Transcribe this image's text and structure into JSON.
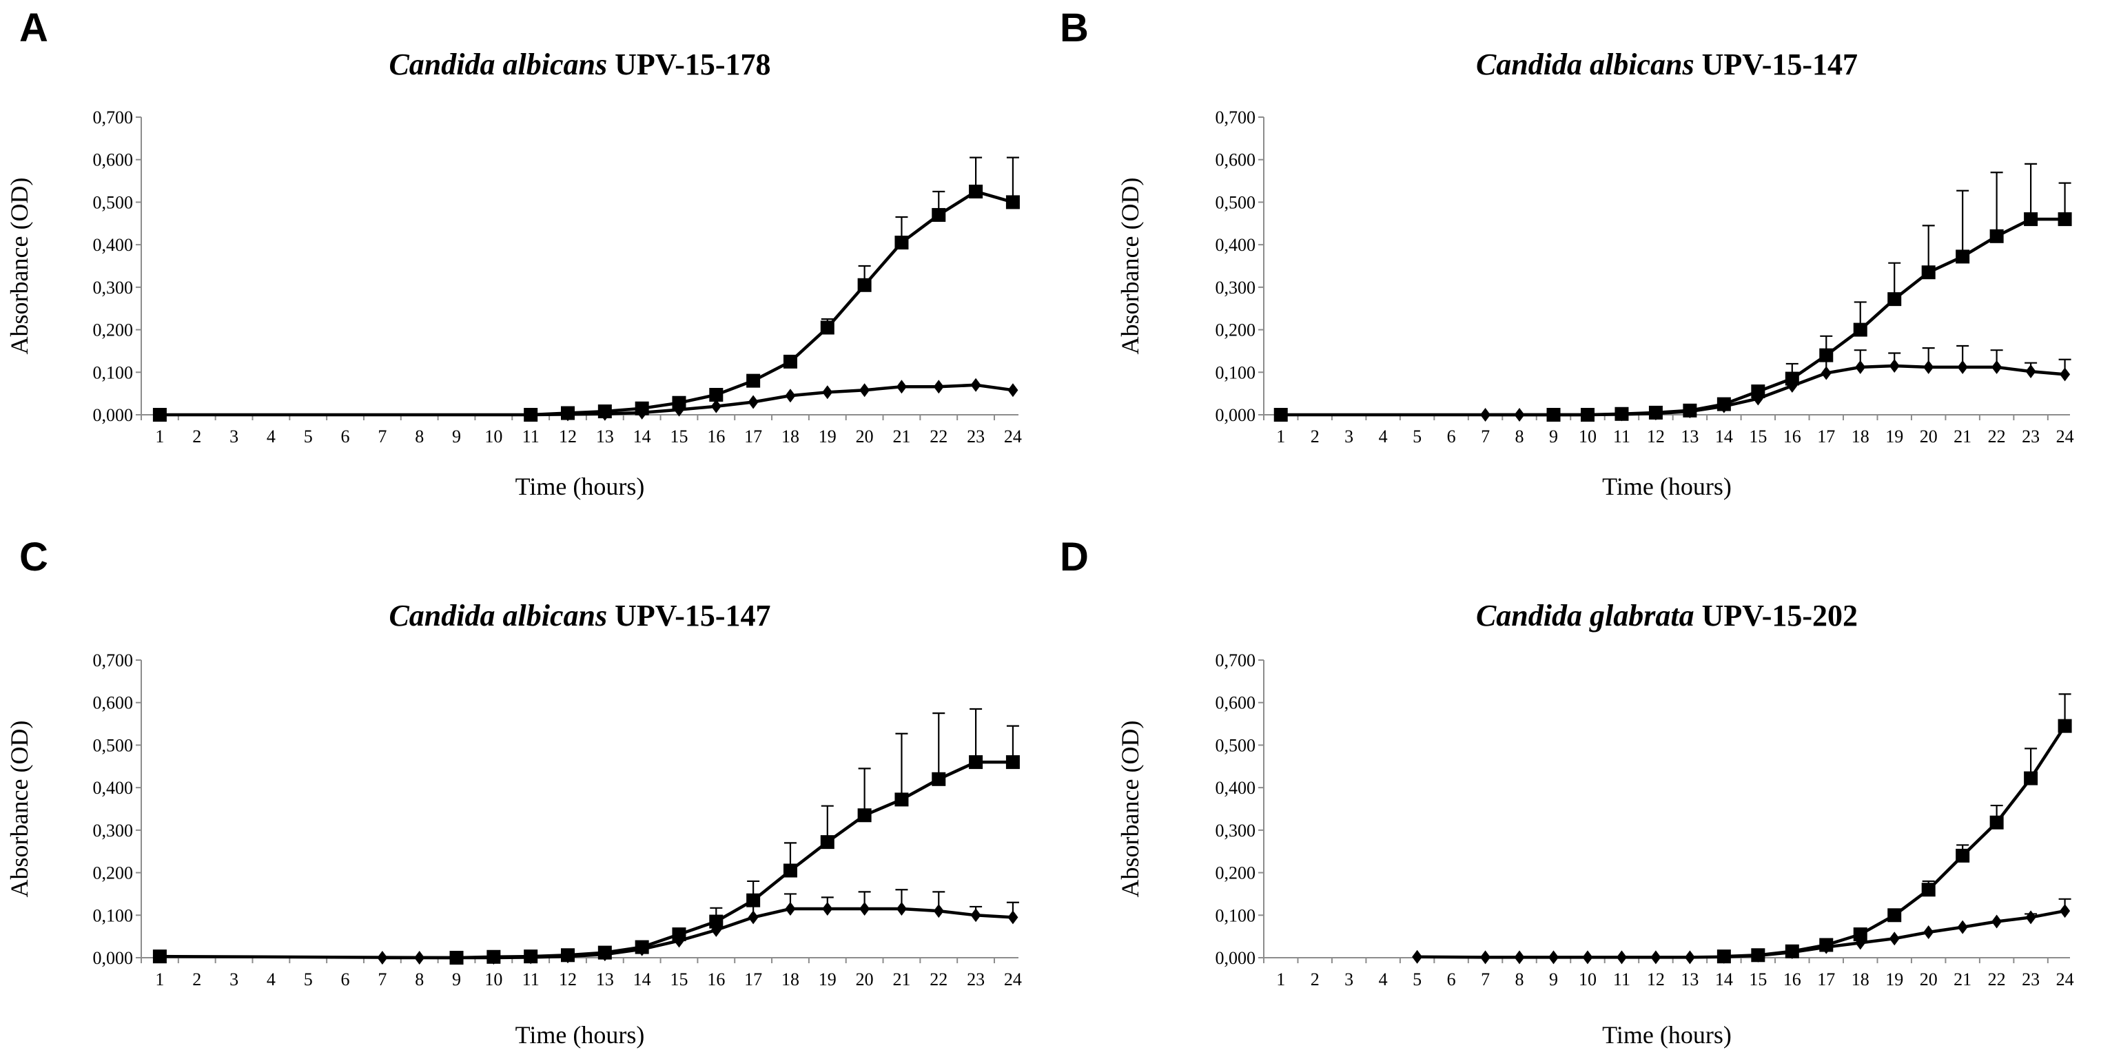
{
  "chart_data": [
    {
      "panel": "A",
      "type": "line",
      "title_species": "Candida albicans",
      "title_strain": "UPV-15-178",
      "xlabel": "Time (hours)",
      "ylabel": "Absorbance (OD)",
      "ylim": [
        0,
        0.7
      ],
      "yticks": [
        "0,000",
        "0,100",
        "0,200",
        "0,300",
        "0,400",
        "0,500",
        "0,600",
        "0,700"
      ],
      "categories": [
        "1",
        "2",
        "3",
        "4",
        "5",
        "6",
        "7",
        "8",
        "9",
        "10",
        "11",
        "12",
        "13",
        "14",
        "15",
        "16",
        "17",
        "18",
        "19",
        "20",
        "21",
        "22",
        "23",
        "24"
      ],
      "series": [
        {
          "name": "square",
          "marker": "square",
          "x": [
            1,
            11,
            12,
            13,
            14,
            15,
            16,
            17,
            18,
            19,
            20,
            21,
            22,
            23,
            24
          ],
          "values": [
            0.0,
            0.0,
            0.004,
            0.008,
            0.015,
            0.028,
            0.047,
            0.08,
            0.125,
            0.205,
            0.305,
            0.405,
            0.47,
            0.525,
            0.5
          ],
          "errors": [
            0,
            0,
            0,
            0,
            0,
            0,
            0,
            0,
            0,
            0.02,
            0.045,
            0.06,
            0.055,
            0.08,
            0.105
          ]
        },
        {
          "name": "diamond",
          "marker": "diamond",
          "x": [
            11,
            12,
            13,
            14,
            15,
            16,
            17,
            18,
            19,
            20,
            21,
            22,
            23,
            24
          ],
          "values": [
            0.0,
            0.001,
            0.002,
            0.005,
            0.012,
            0.02,
            0.03,
            0.045,
            0.053,
            0.058,
            0.066,
            0.066,
            0.07,
            0.058
          ],
          "errors": [
            0,
            0,
            0,
            0,
            0,
            0,
            0,
            0,
            0,
            0,
            0,
            0,
            0,
            0
          ]
        }
      ]
    },
    {
      "panel": "B",
      "type": "line",
      "title_species": "Candida albicans",
      "title_strain": "UPV-15-147",
      "xlabel": "Time (hours)",
      "ylabel": "Absorbance (OD)",
      "ylim": [
        0,
        0.7
      ],
      "yticks": [
        "0,000",
        "0,100",
        "0,200",
        "0,300",
        "0,400",
        "0,500",
        "0,600",
        "0,700"
      ],
      "categories": [
        "1",
        "2",
        "3",
        "4",
        "5",
        "6",
        "7",
        "8",
        "9",
        "10",
        "11",
        "12",
        "13",
        "14",
        "15",
        "16",
        "17",
        "18",
        "19",
        "20",
        "21",
        "22",
        "23",
        "24"
      ],
      "series": [
        {
          "name": "square",
          "marker": "square",
          "x": [
            1,
            9,
            10,
            11,
            12,
            13,
            14,
            15,
            16,
            17,
            18,
            19,
            20,
            21,
            22,
            23,
            24
          ],
          "values": [
            0.0,
            0.0,
            0.0,
            0.002,
            0.005,
            0.01,
            0.025,
            0.055,
            0.085,
            0.14,
            0.2,
            0.272,
            0.335,
            0.372,
            0.42,
            0.46,
            0.46
          ],
          "errors": [
            0,
            0,
            0,
            0,
            0,
            0,
            0,
            0.01,
            0.035,
            0.045,
            0.065,
            0.085,
            0.11,
            0.155,
            0.15,
            0.13,
            0.085
          ]
        },
        {
          "name": "diamond",
          "marker": "diamond",
          "x": [
            7,
            8,
            9,
            10,
            11,
            12,
            13,
            14,
            15,
            16,
            17,
            18,
            19,
            20,
            21,
            22,
            23,
            24
          ],
          "values": [
            0.0,
            0.0,
            0.0,
            0.0,
            0.001,
            0.003,
            0.008,
            0.02,
            0.038,
            0.068,
            0.098,
            0.112,
            0.115,
            0.112,
            0.112,
            0.112,
            0.102,
            0.095
          ],
          "errors": [
            0,
            0,
            0,
            0,
            0,
            0,
            0,
            0,
            0.01,
            0.025,
            0.035,
            0.04,
            0.03,
            0.045,
            0.05,
            0.04,
            0.02,
            0.035
          ]
        }
      ]
    },
    {
      "panel": "C",
      "type": "line",
      "title_species": "Candida albicans",
      "title_strain": "UPV-15-147",
      "xlabel": "Time (hours)",
      "ylabel": "Absorbance (OD)",
      "ylim": [
        0,
        0.7
      ],
      "yticks": [
        "0,000",
        "0,100",
        "0,200",
        "0,300",
        "0,400",
        "0,500",
        "0,600",
        "0,700"
      ],
      "categories": [
        "1",
        "2",
        "3",
        "4",
        "5",
        "6",
        "7",
        "8",
        "9",
        "10",
        "11",
        "12",
        "13",
        "14",
        "15",
        "16",
        "17",
        "18",
        "19",
        "20",
        "21",
        "22",
        "23",
        "24"
      ],
      "series": [
        {
          "name": "square",
          "marker": "square",
          "x": [
            1,
            9,
            10,
            11,
            12,
            13,
            14,
            15,
            16,
            17,
            18,
            19,
            20,
            21,
            22,
            23,
            24
          ],
          "values": [
            0.003,
            0.0,
            0.002,
            0.003,
            0.006,
            0.012,
            0.025,
            0.055,
            0.085,
            0.135,
            0.205,
            0.272,
            0.335,
            0.372,
            0.42,
            0.46,
            0.46
          ],
          "errors": [
            0,
            0,
            0,
            0,
            0,
            0,
            0,
            0.012,
            0.032,
            0.045,
            0.065,
            0.085,
            0.11,
            0.155,
            0.155,
            0.125,
            0.085
          ]
        },
        {
          "name": "diamond",
          "marker": "diamond",
          "x": [
            7,
            8,
            9,
            10,
            11,
            12,
            13,
            14,
            15,
            16,
            17,
            18,
            19,
            20,
            21,
            22,
            23,
            24
          ],
          "values": [
            0.0,
            0.0,
            0.0,
            0.0,
            0.001,
            0.003,
            0.008,
            0.02,
            0.04,
            0.065,
            0.095,
            0.115,
            0.115,
            0.115,
            0.115,
            0.11,
            0.1,
            0.095
          ],
          "errors": [
            0,
            0,
            0,
            0,
            0,
            0,
            0,
            0,
            0.01,
            0.025,
            0.03,
            0.035,
            0.027,
            0.04,
            0.045,
            0.045,
            0.02,
            0.035
          ]
        }
      ]
    },
    {
      "panel": "D",
      "type": "line",
      "title_species": "Candida glabrata",
      "title_strain": "UPV-15-202",
      "xlabel": "Time (hours)",
      "ylabel": "Absorbance (OD)",
      "ylim": [
        0,
        0.7
      ],
      "yticks": [
        "0,000",
        "0,100",
        "0,200",
        "0,300",
        "0,400",
        "0,500",
        "0,600",
        "0,700"
      ],
      "categories": [
        "1",
        "2",
        "3",
        "4",
        "5",
        "6",
        "7",
        "8",
        "9",
        "10",
        "11",
        "12",
        "13",
        "14",
        "15",
        "16",
        "17",
        "18",
        "19",
        "20",
        "21",
        "22",
        "23",
        "24"
      ],
      "series": [
        {
          "name": "square",
          "marker": "square",
          "x": [
            14,
            15,
            16,
            17,
            18,
            19,
            20,
            21,
            22,
            23,
            24
          ],
          "values": [
            0.003,
            0.006,
            0.015,
            0.03,
            0.055,
            0.1,
            0.16,
            0.24,
            0.318,
            0.422,
            0.545
          ],
          "errors": [
            0,
            0,
            0,
            0.008,
            0.01,
            0.012,
            0.02,
            0.025,
            0.04,
            0.07,
            0.075
          ]
        },
        {
          "name": "diamond",
          "marker": "diamond",
          "x": [
            5,
            7,
            8,
            9,
            10,
            11,
            12,
            13,
            14,
            15,
            16,
            17,
            18,
            19,
            20,
            21,
            22,
            23,
            24
          ],
          "values": [
            0.002,
            0.001,
            0.001,
            0.001,
            0.001,
            0.001,
            0.001,
            0.001,
            0.002,
            0.005,
            0.013,
            0.025,
            0.035,
            0.045,
            0.06,
            0.072,
            0.085,
            0.095,
            0.11
          ],
          "errors": [
            0,
            0,
            0,
            0,
            0,
            0,
            0,
            0,
            0,
            0,
            0,
            0,
            0,
            0,
            0,
            0,
            0,
            0.008,
            0.028
          ]
        }
      ]
    }
  ]
}
